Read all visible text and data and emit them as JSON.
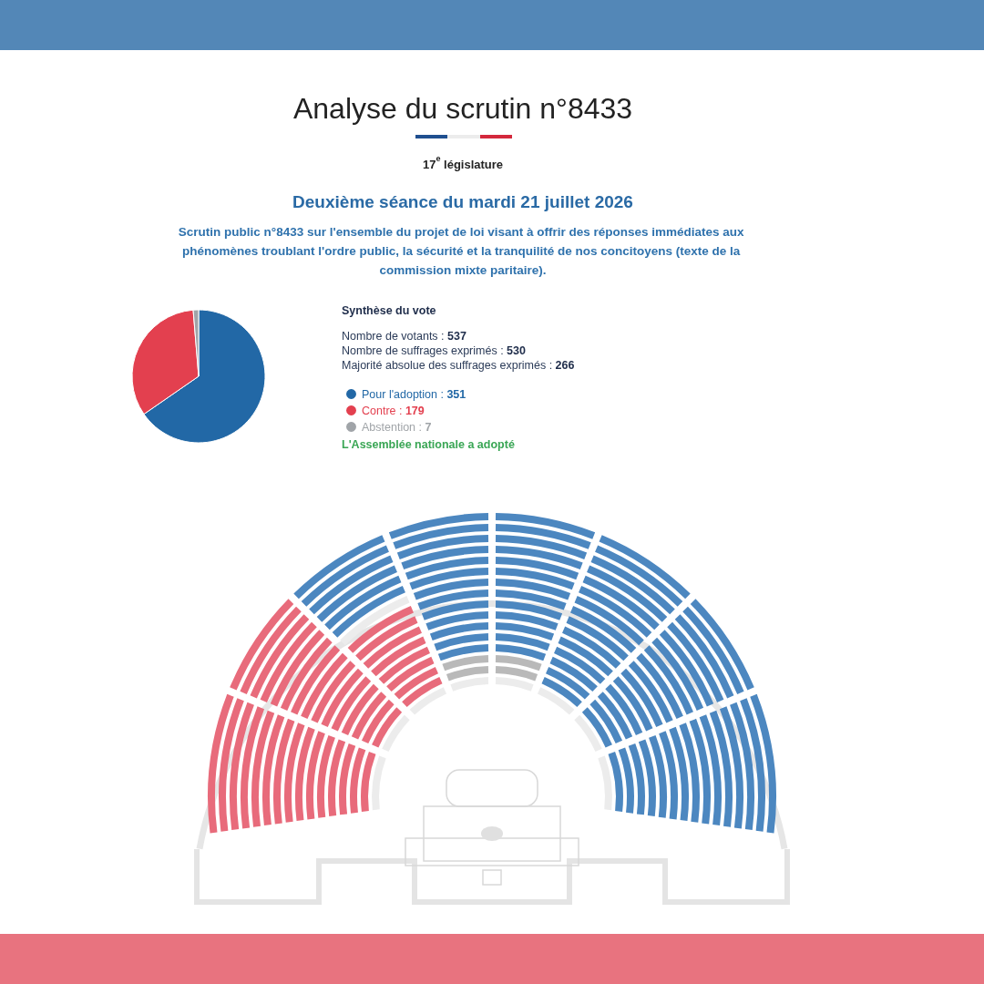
{
  "chart_data": {
    "type": "pie",
    "title": "Analyse du scrutin n°8433",
    "subtitle": "17$^{e}$ législature",
    "legend_title": "Synthèse du vote",
    "categories": [
      "Pour l'adoption : 351",
      "Contre : 179",
      "Abstention : 7"
    ],
    "values": [
      351,
      179,
      7
    ],
    "colors": [
      "#2268a6",
      "#e3404f",
      "#a0a4a8"
    ],
    "legend": "right",
    "annotations": [
      "Deuxième séance du mardi 21 juillet 2026",
      "Scrutin public n°8433 sur l'ensemble du projet de loi visant à offrir des réponses immédiates aux phénomènes troublant l'ordre public, la sécurité et la tranquilité de nos concitoyens (texte de la commission mixte paritaire).",
      "Nombre de votants : 537",
      "Nombre de suffrages exprimés : 530",
      "Majorité absolue des suffrages exprimés : 266",
      "L'Assemblée nationale a adopté"
    ]
  }
}
